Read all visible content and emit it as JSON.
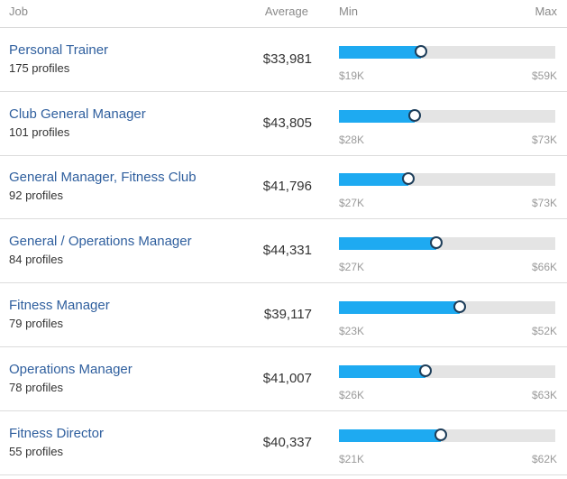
{
  "header": {
    "job": "Job",
    "average": "Average",
    "min": "Min",
    "max": "Max"
  },
  "colors": {
    "link": "#2f5f9e",
    "bar_fill": "#1eaaf1",
    "bar_track": "#e4e4e4",
    "marker_border": "#1e3e5a"
  },
  "rows": [
    {
      "title": "Personal Trainer",
      "profiles": "175 profiles",
      "average": "$33,981",
      "min": "$19K",
      "max": "$59K",
      "min_value": 19000,
      "max_value": 59000,
      "average_value": 33981,
      "fill_ratio": 0.38
    },
    {
      "title": "Club General Manager",
      "profiles": "101 profiles",
      "average": "$43,805",
      "min": "$28K",
      "max": "$73K",
      "min_value": 28000,
      "max_value": 73000,
      "average_value": 43805,
      "fill_ratio": 0.35
    },
    {
      "title": "General Manager, Fitness Club",
      "profiles": "92 profiles",
      "average": "$41,796",
      "min": "$27K",
      "max": "$73K",
      "min_value": 27000,
      "max_value": 73000,
      "average_value": 41796,
      "fill_ratio": 0.32
    },
    {
      "title": "General / Operations Manager",
      "profiles": "84 profiles",
      "average": "$44,331",
      "min": "$27K",
      "max": "$66K",
      "min_value": 27000,
      "max_value": 66000,
      "average_value": 44331,
      "fill_ratio": 0.45
    },
    {
      "title": "Fitness Manager",
      "profiles": "79 profiles",
      "average": "$39,117",
      "min": "$23K",
      "max": "$52K",
      "min_value": 23000,
      "max_value": 52000,
      "average_value": 39117,
      "fill_ratio": 0.56
    },
    {
      "title": "Operations Manager",
      "profiles": "78 profiles",
      "average": "$41,007",
      "min": "$26K",
      "max": "$63K",
      "min_value": 26000,
      "max_value": 63000,
      "average_value": 41007,
      "fill_ratio": 0.4
    },
    {
      "title": "Fitness Director",
      "profiles": "55 profiles",
      "average": "$40,337",
      "min": "$21K",
      "max": "$62K",
      "min_value": 21000,
      "max_value": 62000,
      "average_value": 40337,
      "fill_ratio": 0.47
    }
  ]
}
